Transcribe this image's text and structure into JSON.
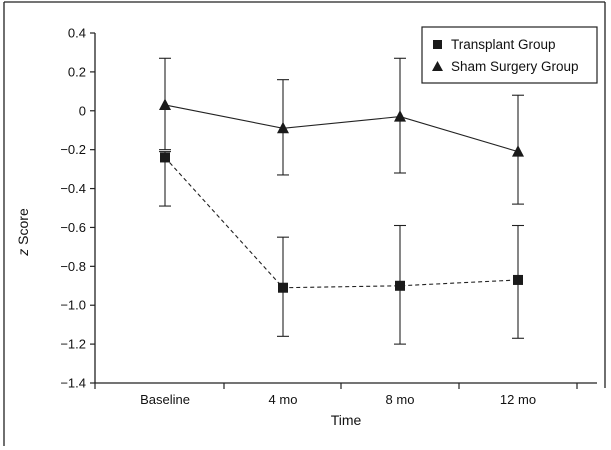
{
  "chart_data": {
    "type": "line",
    "title": "",
    "xlabel": "Time",
    "ylabel_italic": "z",
    "ylabel_rest": " Score",
    "categories": [
      "Baseline",
      "4 mo",
      "8 mo",
      "12 mo"
    ],
    "yticks": [
      "0.4",
      "0.2",
      "0",
      "-0.2",
      "-0.4",
      "-0.6",
      "-0.8",
      "-1.0",
      "-1.2",
      "-1.4"
    ],
    "ylim": [
      -1.4,
      0.4
    ],
    "grid": false,
    "legend_position": "top-right",
    "series": [
      {
        "name": "Transplant Group",
        "marker": "square",
        "line_style": "dashed",
        "values": [
          -0.24,
          -0.91,
          -0.9,
          -0.87
        ],
        "err_low": [
          -0.49,
          -1.16,
          -1.2,
          -1.17
        ],
        "err_high": [
          -0.21,
          -0.65,
          -0.59,
          -0.59
        ]
      },
      {
        "name": "Sham Surgery Group",
        "marker": "triangle",
        "line_style": "solid",
        "values": [
          0.03,
          -0.09,
          -0.03,
          -0.21
        ],
        "err_low": [
          -0.2,
          -0.33,
          -0.32,
          -0.48
        ],
        "err_high": [
          0.27,
          0.16,
          0.27,
          0.08
        ]
      }
    ]
  }
}
